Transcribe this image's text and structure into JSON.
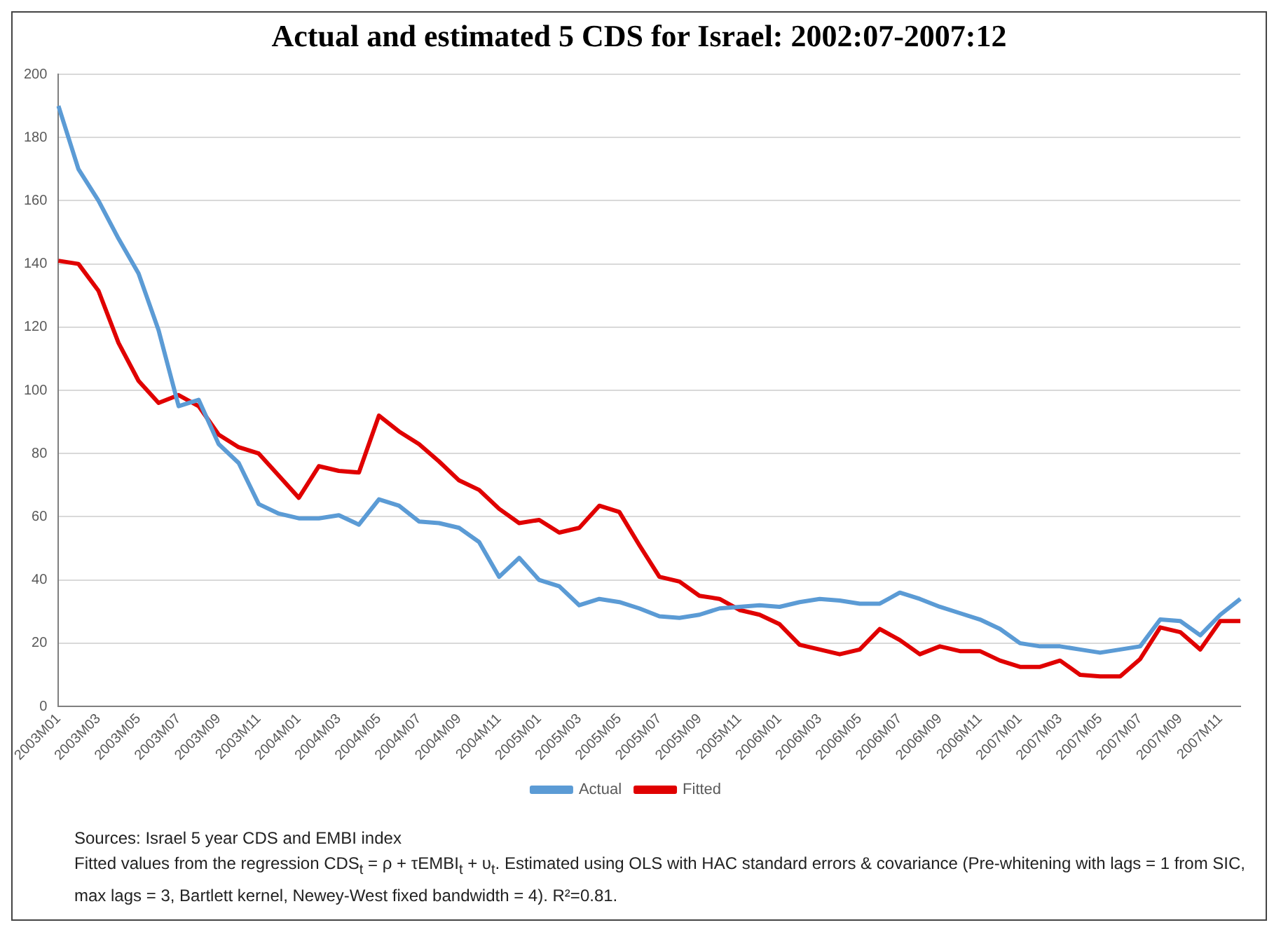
{
  "chart_data": {
    "type": "line",
    "title": "Actual and estimated 5 CDS for Israel: 2002:07-2007:12",
    "categories": [
      "2003M01",
      null,
      "2003M03",
      null,
      "2003M05",
      null,
      "2003M07",
      null,
      "2003M09",
      null,
      "2003M11",
      null,
      "2004M01",
      null,
      "2004M03",
      null,
      "2004M05",
      null,
      "2004M07",
      null,
      "2004M09",
      null,
      "2004M11",
      null,
      "2005M01",
      null,
      "2005M03",
      null,
      "2005M05",
      null,
      "2005M07",
      null,
      "2005M09",
      null,
      "2005M11",
      null,
      "2006M01",
      null,
      "2006M03",
      null,
      "2006M05",
      null,
      "2006M07",
      null,
      "2006M09",
      null,
      "2006M11",
      null,
      "2007M01",
      null,
      "2007M03",
      null,
      "2007M05",
      null,
      "2007M07",
      null,
      "2007M09",
      null,
      "2007M11",
      null
    ],
    "series": [
      {
        "name": "Actual",
        "color": "#5b9bd5",
        "values": [
          190,
          170,
          160,
          148,
          137,
          119,
          95,
          97,
          83,
          77,
          64,
          61,
          59.5,
          59.5,
          60.5,
          57.5,
          65.5,
          63.5,
          58.5,
          58,
          56.5,
          52,
          41,
          47,
          40,
          38,
          32,
          34,
          33,
          31,
          28.5,
          28,
          29,
          31,
          31.5,
          32,
          31.5,
          33,
          34,
          33.5,
          32.5,
          32.5,
          36,
          34,
          31.5,
          29.5,
          27.5,
          24.5,
          20,
          19,
          19,
          18,
          17,
          18,
          19,
          27.5,
          27,
          22.5,
          29,
          34
        ]
      },
      {
        "name": "Fitted",
        "color": "#e00000",
        "values": [
          141,
          140,
          131.5,
          115,
          103,
          96,
          98.5,
          95,
          86,
          82,
          80,
          73,
          66,
          76,
          74.5,
          74,
          92,
          87,
          83,
          77.5,
          71.5,
          68.5,
          62.5,
          58,
          59,
          55,
          56.5,
          63.5,
          61.5,
          51,
          41,
          39.5,
          35,
          34,
          30.5,
          29,
          26,
          19.5,
          18,
          16.5,
          18,
          24.5,
          21,
          16.5,
          19,
          17.5,
          17.5,
          14.5,
          12.5,
          12.5,
          14.5,
          10,
          9.5,
          9.5,
          15,
          25,
          23.5,
          18,
          27,
          27
        ]
      }
    ],
    "ylim": [
      0,
      200
    ],
    "yticks": [
      0,
      20,
      40,
      60,
      80,
      100,
      120,
      140,
      160,
      180,
      200
    ],
    "grid": "y",
    "legend": "bottom",
    "marker": "none",
    "line_style": "solid",
    "annotations": [
      "Sources: Israel 5 year CDS and EMBI index",
      "Fitted values from the regression    CDS$_{t}$ = ρ + τEMBI$_{t}$ + υ$_{t}$. Estimated using OLS with HAC standard errors & covariance (Pre-whitening with lags = 1 from SIC, max lags = 3, Bartlett kernel, Newey-West fixed bandwidth = 4).  R²=0.81."
    ]
  }
}
